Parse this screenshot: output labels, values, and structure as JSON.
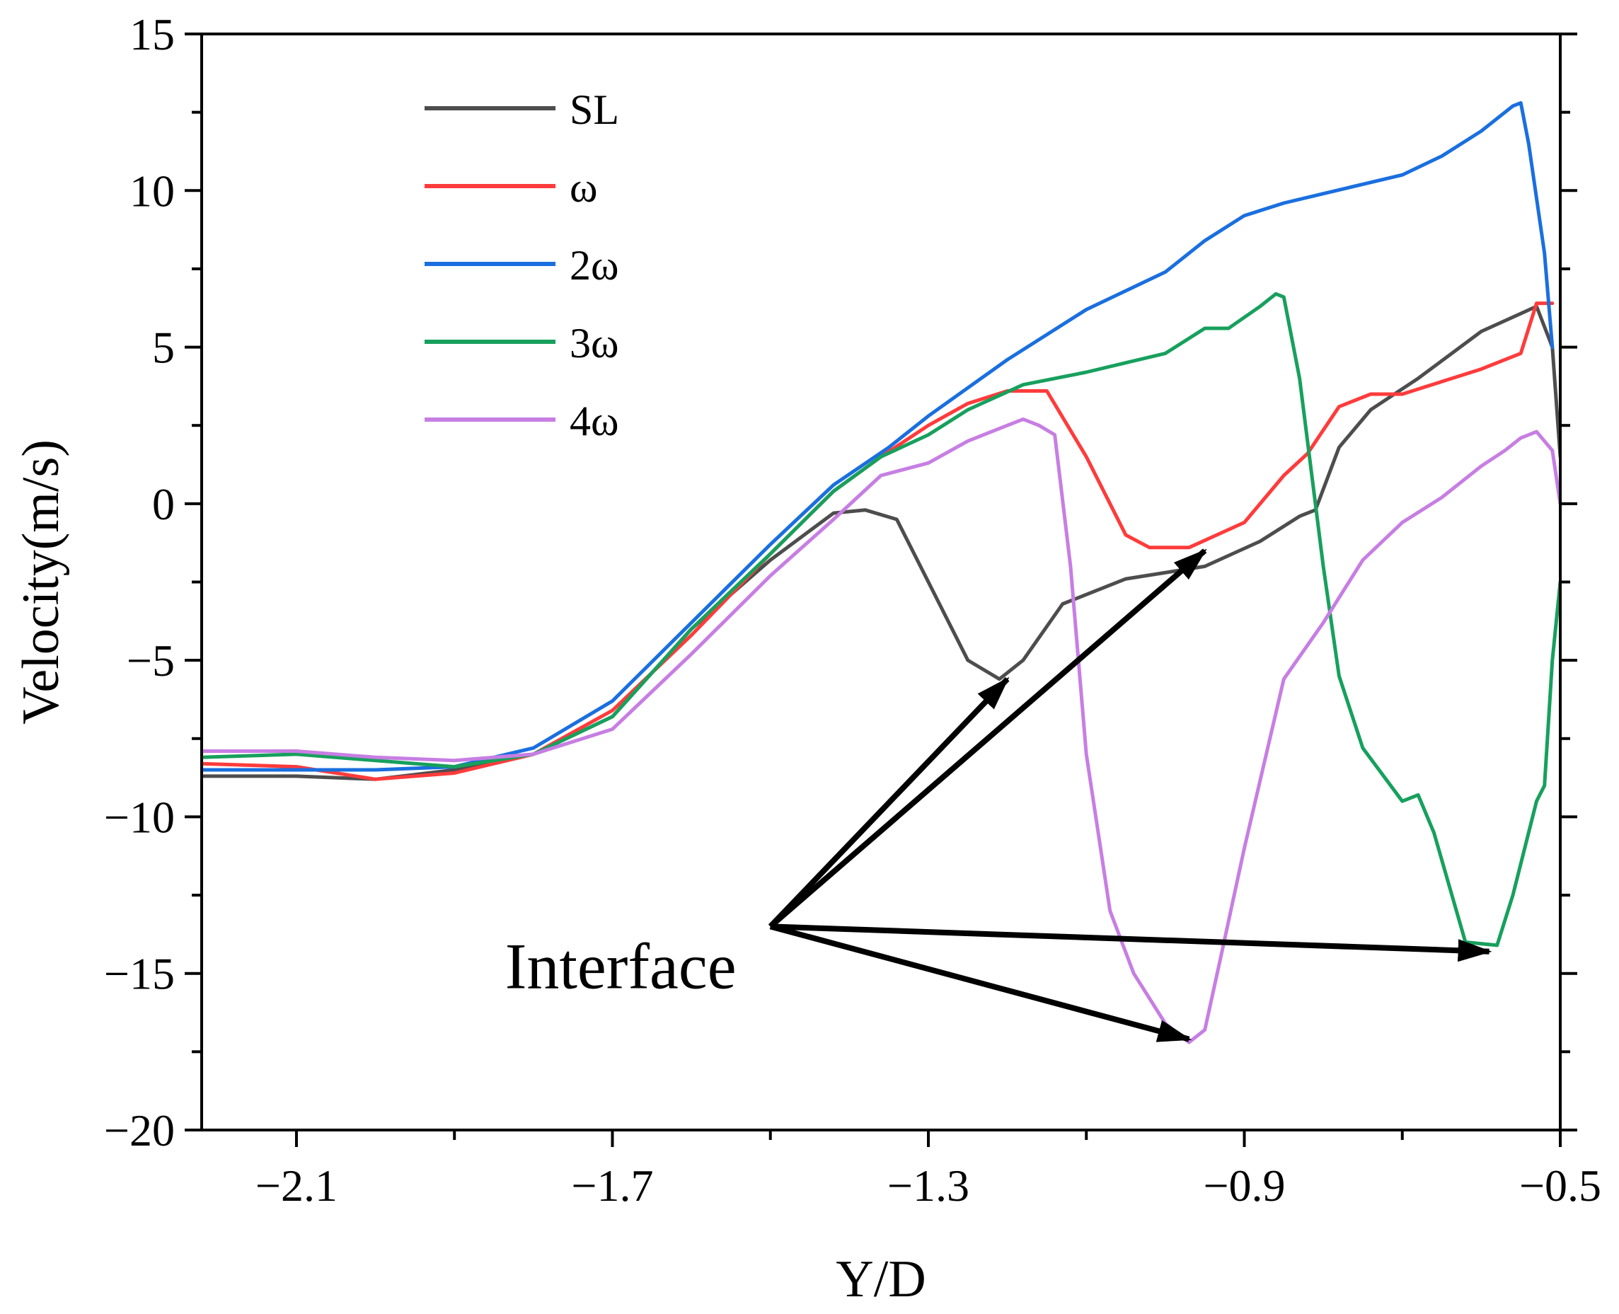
{
  "chart_data": {
    "type": "line",
    "xlabel": "Y/D",
    "ylabel": "Velocity(m/s)",
    "xlim": [
      -2.22,
      -0.5
    ],
    "ylim": [
      -20,
      15
    ],
    "xticks": [
      -2.1,
      -1.7,
      -1.3,
      -0.9,
      -0.5
    ],
    "xtick_labels": [
      "−2.1",
      "−1.7",
      "−1.3",
      "−0.9",
      "−0.5"
    ],
    "yticks": [
      -20,
      -15,
      -10,
      -5,
      0,
      5,
      10,
      15
    ],
    "ytick_labels": [
      "−20",
      "−15",
      "−10",
      "−5",
      "0",
      "5",
      "10",
      "15"
    ],
    "legend_position": "top-left",
    "series": [
      {
        "name": "SL",
        "color": "#4d4d4d",
        "x": [
          -2.22,
          -2.1,
          -2.0,
          -1.9,
          -1.8,
          -1.7,
          -1.6,
          -1.5,
          -1.42,
          -1.38,
          -1.34,
          -1.3,
          -1.25,
          -1.21,
          -1.18,
          -1.13,
          -1.05,
          -0.95,
          -0.88,
          -0.83,
          -0.81,
          -0.78,
          -0.74,
          -0.68,
          -0.6,
          -0.53,
          -0.51,
          -0.5
        ],
        "y": [
          -8.7,
          -8.7,
          -8.8,
          -8.5,
          -8.0,
          -6.8,
          -4.0,
          -1.8,
          -0.3,
          -0.2,
          -0.5,
          -2.5,
          -5.0,
          -5.6,
          -5.0,
          -3.2,
          -2.4,
          -2.0,
          -1.2,
          -0.4,
          -0.2,
          1.8,
          3.0,
          4.0,
          5.5,
          6.3,
          5.0,
          1.5
        ]
      },
      {
        "name": "ω",
        "color": "#ff3b3b",
        "x": [
          -2.22,
          -2.1,
          -2.0,
          -1.9,
          -1.8,
          -1.7,
          -1.6,
          -1.5,
          -1.42,
          -1.36,
          -1.3,
          -1.25,
          -1.2,
          -1.15,
          -1.1,
          -1.05,
          -1.02,
          -0.97,
          -0.9,
          -0.85,
          -0.82,
          -0.78,
          -0.74,
          -0.7,
          -0.65,
          -0.6,
          -0.55,
          -0.53,
          -0.51
        ],
        "y": [
          -8.3,
          -8.4,
          -8.8,
          -8.6,
          -8.0,
          -6.6,
          -4.2,
          -1.6,
          0.4,
          1.5,
          2.5,
          3.2,
          3.6,
          3.6,
          1.5,
          -1.0,
          -1.4,
          -1.4,
          -0.6,
          0.9,
          1.6,
          3.1,
          3.5,
          3.5,
          3.9,
          4.3,
          4.8,
          6.4,
          6.4
        ]
      },
      {
        "name": "2ω",
        "color": "#1a6fdf",
        "x": [
          -2.22,
          -2.1,
          -2.0,
          -1.9,
          -1.8,
          -1.7,
          -1.6,
          -1.5,
          -1.42,
          -1.35,
          -1.3,
          -1.2,
          -1.1,
          -1.0,
          -0.95,
          -0.9,
          -0.85,
          -0.8,
          -0.75,
          -0.7,
          -0.65,
          -0.6,
          -0.56,
          -0.55,
          -0.54,
          -0.52,
          -0.51
        ],
        "y": [
          -8.5,
          -8.5,
          -8.5,
          -8.4,
          -7.8,
          -6.3,
          -3.8,
          -1.3,
          0.6,
          1.8,
          2.8,
          4.6,
          6.2,
          7.4,
          8.4,
          9.2,
          9.6,
          9.9,
          10.2,
          10.5,
          11.1,
          11.9,
          12.7,
          12.8,
          11.5,
          8.0,
          5.0
        ]
      },
      {
        "name": "3ω",
        "color": "#17a05d",
        "x": [
          -2.22,
          -2.1,
          -2.0,
          -1.9,
          -1.8,
          -1.7,
          -1.6,
          -1.5,
          -1.42,
          -1.36,
          -1.3,
          -1.25,
          -1.18,
          -1.1,
          -1.05,
          -1.0,
          -0.95,
          -0.92,
          -0.88,
          -0.86,
          -0.85,
          -0.83,
          -0.8,
          -0.78,
          -0.75,
          -0.7,
          -0.68,
          -0.66,
          -0.62,
          -0.58,
          -0.56,
          -0.53,
          -0.52,
          -0.51,
          -0.5
        ],
        "y": [
          -8.1,
          -8.0,
          -8.2,
          -8.4,
          -8.0,
          -6.8,
          -4.0,
          -1.6,
          0.4,
          1.5,
          2.2,
          3.0,
          3.8,
          4.2,
          4.5,
          4.8,
          5.6,
          5.6,
          6.3,
          6.7,
          6.6,
          4.0,
          -2.0,
          -5.5,
          -7.8,
          -9.5,
          -9.3,
          -10.5,
          -14.0,
          -14.1,
          -12.5,
          -9.5,
          -9.0,
          -5.0,
          -2.5
        ]
      },
      {
        "name": "4ω",
        "color": "#c77ee3",
        "x": [
          -2.22,
          -2.1,
          -2.0,
          -1.9,
          -1.8,
          -1.7,
          -1.6,
          -1.5,
          -1.42,
          -1.36,
          -1.3,
          -1.25,
          -1.2,
          -1.18,
          -1.16,
          -1.14,
          -1.12,
          -1.1,
          -1.07,
          -1.04,
          -1.0,
          -0.97,
          -0.95,
          -0.93,
          -0.9,
          -0.85,
          -0.8,
          -0.75,
          -0.7,
          -0.65,
          -0.6,
          -0.57,
          -0.55,
          -0.53,
          -0.51,
          -0.5
        ],
        "y": [
          -7.9,
          -7.9,
          -8.1,
          -8.2,
          -8.0,
          -7.2,
          -4.8,
          -2.3,
          -0.5,
          0.9,
          1.3,
          2.0,
          2.5,
          2.7,
          2.5,
          2.2,
          -2.0,
          -8.0,
          -13.0,
          -15.0,
          -16.6,
          -17.2,
          -16.8,
          -14.5,
          -11.0,
          -5.6,
          -3.8,
          -1.8,
          -0.6,
          0.2,
          1.2,
          1.7,
          2.1,
          2.3,
          1.7,
          0.0
        ]
      }
    ],
    "annotation": {
      "text": "Interface",
      "origin": [
        -1.5,
        -13.5
      ],
      "arrows": [
        {
          "to": [
            -1.2,
            -5.6
          ]
        },
        {
          "to": [
            -0.95,
            -1.5
          ]
        },
        {
          "to": [
            -0.97,
            -17.1
          ]
        },
        {
          "to": [
            -0.59,
            -14.3
          ]
        }
      ]
    }
  }
}
